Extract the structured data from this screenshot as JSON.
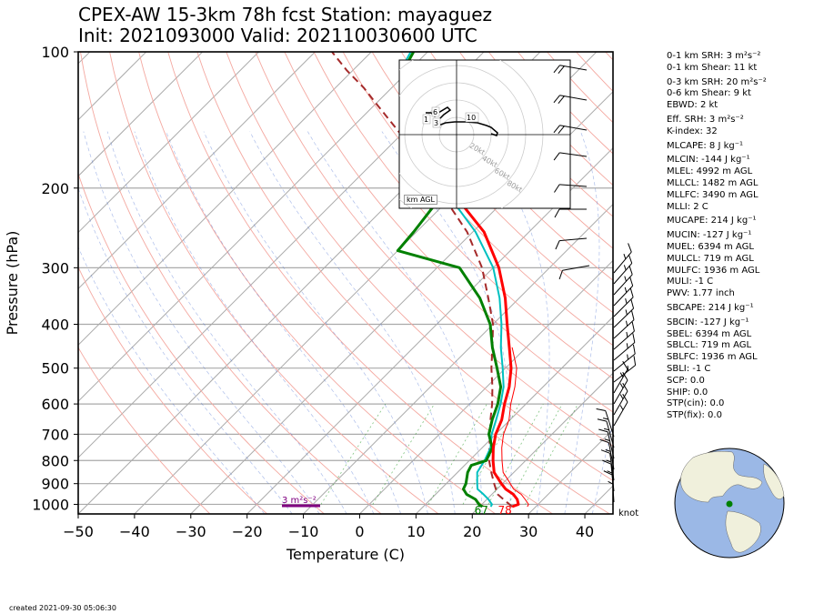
{
  "header": {
    "title_line1": "CPEX-AW 15-3km  78h fcst  Station: mayaguez",
    "title_line2": "Init: 2021093000  Valid: 202110030600 UTC"
  },
  "indices": [
    "0-1 km SRH: 3 m²s⁻²",
    "0-1 km Shear: 11 kt",
    "0-3 km SRH: 20 m²s⁻²",
    "0-6 km Shear: 9 kt",
    "EBWD: 2 kt",
    "Eff. SRH: 3 m²s⁻²",
    "K-index: 32",
    "MLCAPE: 8 J kg⁻¹",
    "MLCIN: -144 J kg⁻¹",
    "MLEL: 4992 m AGL",
    "MLLCL: 1482 m AGL",
    "MLLFC: 3490 m AGL",
    "MLLI: 2 C",
    "MUCAPE: 214 J kg⁻¹",
    "MUCIN: -127 J kg⁻¹",
    "MUEL: 6394 m AGL",
    "MULCL: 719 m AGL",
    "MULFC: 1936 m AGL",
    "MULI: -1 C",
    "PWV: 1.77 inch",
    "SBCAPE: 214 J kg⁻¹",
    "SBCIN: -127 J kg⁻¹",
    "SBEL: 6394 m AGL",
    "SBLCL: 719 m AGL",
    "SBLFC: 1936 m AGL",
    "SBLI: -1 C",
    "SCP: 0.0",
    "SHIP: 0.0",
    "STP(cin): 0.0",
    "STP(fix): 0.0"
  ],
  "footer": {
    "created": "created 2021-09-30 05:06:30"
  },
  "hodograph": {
    "label": "km AGL",
    "ring_labels": [
      "20kt",
      "40kt",
      "60kt",
      "80kt"
    ],
    "height_labels": [
      "1",
      "3",
      "6",
      "10"
    ]
  },
  "barb_unit": "knot",
  "chart_data": {
    "type": "line",
    "xlabel": "Temperature (C)",
    "ylabel": "Pressure (hPa)",
    "xlim": [
      -50,
      45
    ],
    "ylim": [
      1050,
      100
    ],
    "y_scale": "log",
    "x_ticks": [
      -50,
      -40,
      -30,
      -20,
      -10,
      0,
      10,
      20,
      30,
      40
    ],
    "y_ticks": [
      100,
      200,
      300,
      400,
      500,
      600,
      700,
      800,
      900,
      1000
    ],
    "surface_labels": {
      "dewpoint": "67",
      "temperature": "78"
    },
    "srh_label": "3 m²s⁻²",
    "series": [
      {
        "key": "temperature",
        "color": "#ff0000",
        "p": [
          1012,
          1000,
          975,
          950,
          925,
          900,
          850,
          800,
          750,
          700,
          650,
          600,
          550,
          500,
          450,
          400,
          350,
          300,
          250,
          200
        ],
        "values": [
          25.8,
          26.5,
          25.4,
          23.8,
          21.5,
          19.8,
          16.5,
          14.2,
          12.0,
          10.0,
          8.5,
          6.2,
          4.0,
          1.0,
          -3.0,
          -7.5,
          -12.5,
          -19.0,
          -28.0,
          -42.0
        ]
      },
      {
        "key": "dewpoint",
        "color": "#008000",
        "p": [
          1012,
          1000,
          975,
          950,
          925,
          900,
          850,
          820,
          800,
          750,
          700,
          650,
          600,
          550,
          500,
          450,
          400,
          350,
          300,
          275,
          250,
          220,
          200,
          180,
          160,
          140,
          120,
          110,
          100
        ],
        "values": [
          20.5,
          19.5,
          18.0,
          15.5,
          14.0,
          13.5,
          11.8,
          11.2,
          13.0,
          11.8,
          8.8,
          6.8,
          5.0,
          2.5,
          -1.5,
          -6.0,
          -10.5,
          -17.0,
          -26.0,
          -40.0,
          -40.5,
          -41.5,
          -45.0,
          -50.0,
          -56.0,
          -62.0,
          -68.0,
          -71.0,
          -72.5
        ]
      },
      {
        "key": "wetbulb",
        "color": "#00c0c0",
        "p": [
          1012,
          1000,
          975,
          950,
          925,
          900,
          850,
          800,
          750,
          700,
          650,
          600,
          550,
          500,
          450,
          400,
          350,
          300,
          250,
          200,
          170,
          140,
          120,
          110,
          100
        ],
        "values": [
          22.0,
          21.8,
          20.3,
          18.5,
          16.5,
          15.5,
          13.5,
          12.7,
          11.5,
          9.3,
          7.5,
          5.5,
          3.0,
          -0.5,
          -4.5,
          -8.5,
          -13.5,
          -20.0,
          -29.5,
          -43.0,
          -52.0,
          -61.0,
          -68.0,
          -71.5,
          -73.0
        ]
      },
      {
        "key": "virtual_temperature",
        "color": "#ff0000",
        "p": [
          1012,
          1000,
          975,
          950,
          925,
          900,
          850,
          800,
          750,
          700,
          650,
          600,
          550,
          500,
          450
        ],
        "values": [
          28.5,
          28.3,
          26.8,
          25.2,
          22.9,
          21.4,
          18.1,
          15.8,
          13.5,
          11.4,
          9.8,
          7.3,
          5.0,
          2.0,
          -2.5
        ]
      },
      {
        "key": "parcel",
        "color": "#a52a2a",
        "p": [
          1012,
          950,
          900,
          850,
          800,
          750,
          700,
          650,
          600,
          550,
          500,
          450,
          400,
          350,
          300,
          250,
          200,
          170,
          150,
          130,
          120,
          110,
          100
        ],
        "values": [
          25.8,
          21.0,
          18.5,
          16.0,
          13.5,
          11.3,
          9.0,
          6.5,
          4.0,
          1.0,
          -2.5,
          -6.0,
          -10.0,
          -15.5,
          -22.0,
          -31.0,
          -44.0,
          -53.0,
          -61.0,
          -70.0,
          -75.0,
          -81.0,
          -87.0
        ]
      }
    ]
  }
}
